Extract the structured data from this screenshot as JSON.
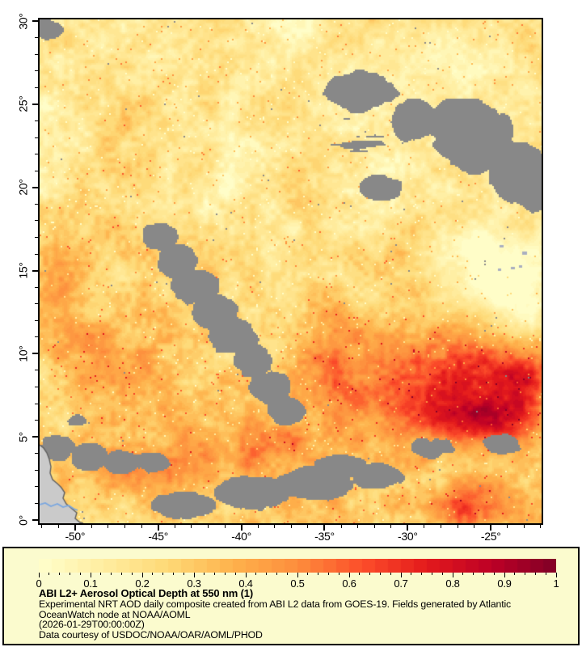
{
  "legend": {
    "title": "ABI L2+ Aerosol Optical Depth at 550 nm (1)",
    "lines": [
      "Experimental NRT AOD daily composite created from ABI L2 data from GOES-19. Fields generated by Atlantic",
      "OceanWatch node at NOAA/AOML",
      "(2026-01-29T00:00:00Z)",
      "Data courtesy of USDOC/NOAA/OAR/AOML/PHOD"
    ]
  },
  "chart_data": {
    "type": "heatmap",
    "title": "ABI L2+ Aerosol Optical Depth at 550 nm (1)",
    "xlabel": "",
    "ylabel": "",
    "x_range": [
      -52.13,
      -21.95
    ],
    "y_range": [
      -0.19,
      30.1
    ],
    "x_ticks": [
      -50,
      -45,
      -40,
      -35,
      -30,
      -25
    ],
    "x_tick_labels": [
      "-50°",
      "-45°",
      "-40°",
      "-35°",
      "-30°",
      "-25°"
    ],
    "y_ticks": [
      0,
      5,
      10,
      15,
      20,
      25,
      30
    ],
    "y_tick_labels": [
      "0°",
      "5°",
      "10°",
      "15°",
      "20°",
      "25°",
      "30°"
    ],
    "minor_tick_step_deg": 1,
    "value_range": [
      0,
      1
    ],
    "colorbar": {
      "min": 0,
      "max": 1,
      "tick_values": [
        0,
        0.1,
        0.2,
        0.3,
        0.4,
        0.5,
        0.6,
        0.7,
        0.8,
        0.9,
        1
      ],
      "tick_labels": [
        "0",
        "0.1",
        "0.2",
        "0.3",
        "0.4",
        "0.5",
        "0.6",
        "0.7",
        "0.8",
        "0.9",
        "1"
      ],
      "minor_step": 0.02,
      "steps": 40
    },
    "colormap_anchors": [
      [
        0.0,
        "#ffffcc"
      ],
      [
        0.125,
        "#ffeda0"
      ],
      [
        0.25,
        "#fed976"
      ],
      [
        0.375,
        "#feb24c"
      ],
      [
        0.5,
        "#fd8d3c"
      ],
      [
        0.625,
        "#fc4e2a"
      ],
      [
        0.75,
        "#e31a1c"
      ],
      [
        0.875,
        "#bd0026"
      ],
      [
        1.0,
        "#800026"
      ]
    ],
    "colors": {
      "cloud_nodata": "#888888",
      "land": "#cacaca",
      "coast_line": "#606060",
      "river": "#7aa7e0",
      "island": "#a9afc0",
      "panel_bg": "#fbfbce",
      "axis": "#000000",
      "page_bg": "#ffffff"
    },
    "aod_model": {
      "base": {
        "offset": 0.17,
        "south_gain": 0.1,
        "south_ref_lat": 20
      },
      "noise_amp": 0.5,
      "gaussians": [
        [
          -28.0,
          8.2,
          4.6,
          3.4,
          0.5
        ],
        [
          -34.5,
          8.5,
          2.8,
          2.2,
          0.3
        ],
        [
          -23.0,
          8.8,
          2.6,
          2.6,
          0.35
        ],
        [
          -25.0,
          6.2,
          2.6,
          2.0,
          0.2
        ],
        [
          -25.5,
          6.0,
          3.2,
          1.2,
          0.26
        ],
        [
          -26.0,
          0.8,
          3.0,
          1.4,
          0.33
        ],
        [
          -31.0,
          15.5,
          2.3,
          1.8,
          0.18
        ],
        [
          -34.0,
          12.0,
          2.2,
          1.6,
          0.22
        ],
        [
          -38.5,
          4.5,
          2.6,
          1.7,
          0.22
        ],
        [
          -44.0,
          3.5,
          2.6,
          1.4,
          0.15
        ],
        [
          -47.5,
          3.2,
          2.2,
          1.4,
          0.18
        ],
        [
          -48.5,
          9.5,
          3.2,
          2.6,
          0.15
        ],
        [
          -51.5,
          12.5,
          2.6,
          3.6,
          0.2
        ],
        [
          -50.5,
          18.0,
          2.4,
          2.6,
          0.1
        ],
        [
          -46.0,
          21.0,
          3.5,
          2.8,
          0.07
        ],
        [
          -36.0,
          19.8,
          2.8,
          1.4,
          0.1
        ],
        [
          -29.5,
          18.0,
          1.8,
          1.2,
          0.1
        ],
        [
          -24.5,
          14.5,
          2.8,
          2.6,
          -0.28
        ],
        [
          -22.6,
          11.8,
          1.8,
          1.6,
          -0.16
        ],
        [
          -26.8,
          16.8,
          2.0,
          1.4,
          -0.12
        ],
        [
          -31.0,
          27.5,
          4.0,
          2.2,
          -0.06
        ],
        [
          -25.5,
          27.0,
          3.0,
          2.0,
          -0.05
        ]
      ],
      "smooth_zones": [
        [
          -24.8,
          14.3,
          3.2,
          3.0,
          0.72
        ],
        [
          -29.0,
          26.5,
          4.0,
          2.5,
          0.35
        ],
        [
          -25.5,
          4.5,
          3.0,
          2.0,
          0.3
        ]
      ]
    },
    "cloud_model": {
      "threshold": 0.64,
      "gaussians": [
        [
          -51.6,
          29.5,
          1.1,
          0.8,
          1.05
        ],
        [
          -32.7,
          25.7,
          2.6,
          1.5,
          1.25
        ],
        [
          -29.8,
          24.0,
          2.0,
          1.6,
          1.2
        ],
        [
          -26.3,
          23.3,
          2.8,
          2.5,
          1.35
        ],
        [
          -23.2,
          20.8,
          2.0,
          2.0,
          1.25
        ],
        [
          -22.4,
          19.6,
          1.4,
          1.2,
          1.15
        ],
        [
          -31.5,
          20.0,
          1.7,
          0.95,
          1.1
        ],
        [
          -45.0,
          17.0,
          1.4,
          1.1,
          1.1
        ],
        [
          -43.9,
          15.5,
          1.6,
          1.25,
          1.2
        ],
        [
          -42.8,
          14.0,
          1.8,
          1.35,
          1.3
        ],
        [
          -41.7,
          12.5,
          1.8,
          1.4,
          1.3
        ],
        [
          -40.6,
          11.0,
          1.8,
          1.35,
          1.3
        ],
        [
          -39.5,
          9.5,
          1.7,
          1.25,
          1.25
        ],
        [
          -38.4,
          8.0,
          1.6,
          1.15,
          1.2
        ],
        [
          -37.3,
          6.6,
          1.4,
          1.0,
          1.1
        ],
        [
          -51.2,
          4.3,
          1.5,
          1.1,
          1.1
        ],
        [
          -49.2,
          3.8,
          1.5,
          1.0,
          1.05
        ],
        [
          -47.2,
          3.5,
          1.4,
          0.95,
          1.0
        ],
        [
          -45.3,
          3.4,
          1.4,
          0.95,
          1.0
        ],
        [
          -49.8,
          6.0,
          1.0,
          0.7,
          0.9
        ],
        [
          -43.5,
          0.9,
          2.4,
          1.0,
          1.15
        ],
        [
          -39.5,
          1.6,
          2.6,
          1.2,
          1.15
        ],
        [
          -35.5,
          2.2,
          2.6,
          1.2,
          1.15
        ],
        [
          -34.0,
          3.2,
          2.0,
          0.9,
          1.0
        ],
        [
          -31.8,
          2.6,
          2.0,
          1.0,
          1.05
        ],
        [
          -28.5,
          4.3,
          2.0,
          1.0,
          1.05
        ],
        [
          -24.3,
          4.6,
          1.8,
          0.85,
          1.0
        ]
      ],
      "streak_regions": [
        [
          -33.2,
          23.2,
          3.5,
          2.0,
          1.1
        ]
      ]
    },
    "land": {
      "coast": [
        [
          0,
          526
        ],
        [
          5,
          530
        ],
        [
          9,
          536
        ],
        [
          12,
          544
        ],
        [
          14,
          553
        ],
        [
          13,
          561
        ],
        [
          16,
          569
        ],
        [
          22,
          574
        ],
        [
          27,
          579
        ],
        [
          31,
          585
        ],
        [
          29,
          592
        ],
        [
          33,
          599
        ],
        [
          40,
          605
        ],
        [
          46,
          610
        ],
        [
          44,
          617
        ],
        [
          50,
          622
        ],
        [
          54,
          623
        ]
      ],
      "river": [
        [
          0,
          600
        ],
        [
          7,
          598
        ],
        [
          14,
          602
        ],
        [
          22,
          599
        ],
        [
          29,
          603
        ],
        [
          36,
          601
        ],
        [
          42,
          605
        ],
        [
          47,
          607
        ]
      ],
      "islands": [
        [
          569,
          279,
          5,
          3
        ],
        [
          597,
          287,
          6,
          4
        ],
        [
          567,
          308,
          4,
          3
        ],
        [
          583,
          306,
          5,
          3
        ],
        [
          593,
          304,
          4,
          3
        ]
      ]
    }
  }
}
